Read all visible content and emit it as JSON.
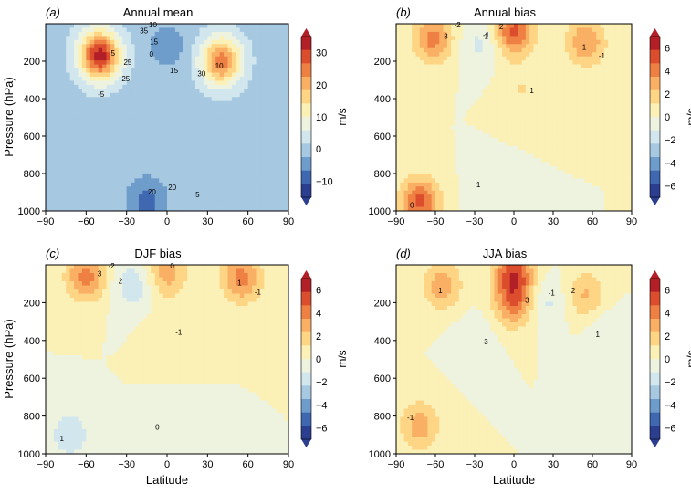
{
  "figure": {
    "y_axis_label": "Pressure (hPa)",
    "x_axis_label": "Latitude",
    "x_ticks": [
      "−90",
      "−60",
      "−30",
      "0",
      "30",
      "60",
      "90"
    ],
    "y_ticks": [
      "200",
      "400",
      "600",
      "800",
      "1000"
    ]
  },
  "colors": {
    "diverging_scale": [
      "#2b3e8f",
      "#3f68b0",
      "#6e9ccb",
      "#a6c9e1",
      "#d2e6ee",
      "#eef3e0",
      "#fbf1b6",
      "#fdd585",
      "#f9b064",
      "#ef8043",
      "#db4d2d",
      "#b21f26"
    ]
  },
  "chart_data": [
    {
      "type": "heatmap",
      "panel": "(a)",
      "title": "Annual mean",
      "xlabel": "",
      "ylabel": "Pressure (hPa)",
      "x_range": [
        -90,
        90
      ],
      "y_range": [
        1000,
        0
      ],
      "units": "m/s",
      "colorbar_ticks": [
        "30",
        "20",
        "10",
        "0",
        "−10"
      ],
      "colorbar_range": [
        -15,
        35
      ],
      "contour_labels": [
        "5",
        "10",
        "15",
        "20",
        "25",
        "30",
        "35",
        "20",
        "25",
        "15",
        "10",
        "5",
        "-5",
        "0"
      ],
      "features": [
        {
          "lat": -50,
          "p": 170,
          "peak": 33
        },
        {
          "lat": 40,
          "p": 200,
          "peak": 25
        },
        {
          "lat": 0,
          "p": 120,
          "peak": -5
        },
        {
          "lat": -15,
          "p": 950,
          "peak": -8
        }
      ]
    },
    {
      "type": "heatmap",
      "panel": "(b)",
      "title": "Annual bias",
      "xlabel": "",
      "ylabel": "",
      "x_range": [
        -90,
        90
      ],
      "y_range": [
        1000,
        0
      ],
      "units": "m/s",
      "colorbar_ticks": [
        "6",
        "4",
        "2",
        "0",
        "−2",
        "−4",
        "−6"
      ],
      "colorbar_range": [
        -7,
        7
      ],
      "contour_labels": [
        "3",
        "1",
        "2",
        "-1",
        "1",
        "0",
        "1",
        "-2",
        "-1",
        "-1"
      ],
      "features": [
        {
          "lat": -62,
          "p": 80,
          "peak": 4
        },
        {
          "lat": 55,
          "p": 100,
          "peak": 3.5
        },
        {
          "lat": 0,
          "p": 40,
          "peak": 5
        },
        {
          "lat": -25,
          "p": 110,
          "peak": -1.5
        },
        {
          "lat": 5,
          "p": 350,
          "peak": 1.2
        },
        {
          "lat": -72,
          "p": 950,
          "peak": 5
        },
        {
          "lat": -20,
          "p": 900,
          "peak": -0.8
        }
      ]
    },
    {
      "type": "heatmap",
      "panel": "(c)",
      "title": "DJF bias",
      "xlabel": "Latitude",
      "ylabel": "Pressure (hPa)",
      "x_range": [
        -90,
        90
      ],
      "y_range": [
        1000,
        0
      ],
      "units": "m/s",
      "colorbar_ticks": [
        "6",
        "4",
        "2",
        "0",
        "−2",
        "−4",
        "−6"
      ],
      "colorbar_range": [
        -7,
        7
      ],
      "contour_labels": [
        "3",
        "1",
        "2",
        "0",
        "-1",
        "1",
        "0",
        "-2",
        "-1"
      ],
      "features": [
        {
          "lat": -60,
          "p": 60,
          "peak": 4
        },
        {
          "lat": 55,
          "p": 70,
          "peak": 4
        },
        {
          "lat": -25,
          "p": 110,
          "peak": -2
        },
        {
          "lat": 0,
          "p": 40,
          "peak": 3
        },
        {
          "lat": 0,
          "p": 350,
          "peak": 1
        },
        {
          "lat": -72,
          "p": 900,
          "peak": -2
        },
        {
          "lat": 0,
          "p": 900,
          "peak": -1
        }
      ]
    },
    {
      "type": "heatmap",
      "panel": "(d)",
      "title": "JJA bias",
      "xlabel": "Latitude",
      "ylabel": "",
      "x_range": [
        -90,
        90
      ],
      "y_range": [
        1000,
        0
      ],
      "units": "m/s",
      "colorbar_ticks": [
        "6",
        "4",
        "2",
        "0",
        "−2",
        "−4",
        "−6"
      ],
      "colorbar_range": [
        -7,
        7
      ],
      "contour_labels": [
        "3",
        "1",
        "2",
        "-1",
        "3",
        "1",
        "-1"
      ],
      "features": [
        {
          "lat": 0,
          "p": 200,
          "peak": 4
        },
        {
          "lat": -55,
          "p": 110,
          "peak": 3
        },
        {
          "lat": 55,
          "p": 160,
          "peak": 2.5
        },
        {
          "lat": 25,
          "p": 200,
          "peak": -1.5
        },
        {
          "lat": -30,
          "p": 400,
          "peak": -1
        },
        {
          "lat": 70,
          "p": 350,
          "peak": -1
        },
        {
          "lat": -72,
          "p": 850,
          "peak": 3
        },
        {
          "lat": 0,
          "p": 40,
          "peak": 5
        }
      ]
    }
  ]
}
